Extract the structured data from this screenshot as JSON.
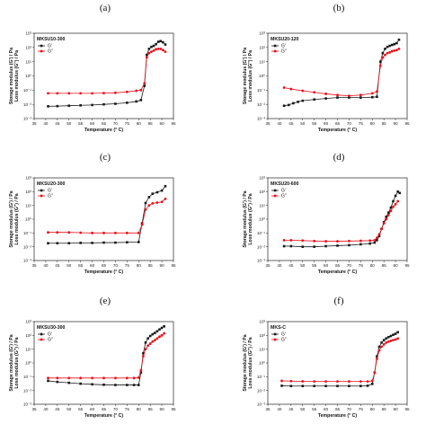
{
  "colors": {
    "g_prime": "#1a1a1a",
    "g_double_prime": "#e8121c",
    "axes": "#222222"
  },
  "legend": {
    "g_prime": "G'",
    "g_double_prime": "G''"
  },
  "axes_text": {
    "xlabel": "Temperature (° C)",
    "ylabel_storage": "Storage modulus (G') / Pa",
    "ylabel_loss": "Loss modulus (G'') / Pa"
  },
  "chart_data": [
    {
      "type": "line",
      "panel": "(a)",
      "sample": "MKSU10-300",
      "xlim": [
        35,
        95
      ],
      "ylog_min_exp": -3,
      "ylog_max_exp": 3,
      "grid": false,
      "legend_position": "top-left",
      "xticks": [
        35,
        40,
        45,
        50,
        55,
        60,
        65,
        70,
        75,
        80,
        85,
        90,
        95
      ],
      "series": [
        {
          "name": "G'",
          "points": [
            [
              41,
              0.0073
            ],
            [
              45,
              0.0075
            ],
            [
              50,
              0.008
            ],
            [
              55,
              0.0085
            ],
            [
              60,
              0.009
            ],
            [
              65,
              0.01
            ],
            [
              70,
              0.011
            ],
            [
              75,
              0.013
            ],
            [
              79,
              0.016
            ],
            [
              81,
              0.02
            ],
            [
              82.5,
              0.2
            ],
            [
              83.5,
              30
            ],
            [
              84.5,
              80
            ],
            [
              85.5,
              110
            ],
            [
              86.5,
              130
            ],
            [
              87.5,
              170
            ],
            [
              88.5,
              250
            ],
            [
              89.5,
              280
            ],
            [
              90.5,
              230
            ],
            [
              91.5,
              160
            ]
          ]
        },
        {
          "name": "G''",
          "points": [
            [
              41,
              0.06
            ],
            [
              45,
              0.06
            ],
            [
              50,
              0.06
            ],
            [
              55,
              0.06
            ],
            [
              60,
              0.06
            ],
            [
              65,
              0.062
            ],
            [
              70,
              0.065
            ],
            [
              75,
              0.075
            ],
            [
              79,
              0.09
            ],
            [
              81,
              0.1
            ],
            [
              82.5,
              0.3
            ],
            [
              83.5,
              20
            ],
            [
              84.5,
              40
            ],
            [
              85.5,
              50
            ],
            [
              86.5,
              60
            ],
            [
              87.5,
              75
            ],
            [
              88.5,
              80
            ],
            [
              89.5,
              80
            ],
            [
              90.5,
              65
            ],
            [
              91.5,
              50
            ]
          ]
        }
      ]
    },
    {
      "type": "line",
      "panel": "(b)",
      "sample": "MKSU20-120",
      "xlim": [
        35,
        95
      ],
      "ylog_min_exp": -3,
      "ylog_max_exp": 3,
      "grid": false,
      "legend_position": "top-left",
      "xticks": [
        35,
        40,
        45,
        50,
        55,
        60,
        65,
        70,
        75,
        80,
        85,
        90,
        95
      ],
      "series": [
        {
          "name": "G'",
          "points": [
            [
              42,
              0.008
            ],
            [
              44,
              0.009
            ],
            [
              46,
              0.012
            ],
            [
              48,
              0.015
            ],
            [
              50,
              0.018
            ],
            [
              55,
              0.022
            ],
            [
              60,
              0.026
            ],
            [
              65,
              0.03
            ],
            [
              70,
              0.03
            ],
            [
              75,
              0.03
            ],
            [
              80,
              0.032
            ],
            [
              82,
              0.034
            ],
            [
              83.5,
              10
            ],
            [
              84.5,
              40
            ],
            [
              85.5,
              80
            ],
            [
              86.5,
              110
            ],
            [
              87.5,
              130
            ],
            [
              88.5,
              150
            ],
            [
              89.5,
              170
            ],
            [
              90.5,
              200
            ],
            [
              91.5,
              350
            ]
          ]
        },
        {
          "name": "G''",
          "points": [
            [
              42,
              0.15
            ],
            [
              45,
              0.12
            ],
            [
              50,
              0.09
            ],
            [
              55,
              0.07
            ],
            [
              60,
              0.055
            ],
            [
              65,
              0.045
            ],
            [
              70,
              0.04
            ],
            [
              75,
              0.045
            ],
            [
              80,
              0.06
            ],
            [
              82,
              0.08
            ],
            [
              83.5,
              5
            ],
            [
              84.5,
              20
            ],
            [
              85.5,
              30
            ],
            [
              86.5,
              40
            ],
            [
              87.5,
              45
            ],
            [
              88.5,
              55
            ],
            [
              89.5,
              60
            ],
            [
              90.5,
              65
            ],
            [
              91.5,
              80
            ]
          ]
        }
      ]
    },
    {
      "type": "line",
      "panel": "(c)",
      "sample": "MKSU20-300",
      "xlim": [
        35,
        95
      ],
      "ylog_min_exp": -3,
      "ylog_max_exp": 3,
      "grid": false,
      "legend_position": "top-left",
      "xticks": [
        35,
        40,
        45,
        50,
        55,
        60,
        65,
        70,
        75,
        80,
        85,
        90,
        95
      ],
      "series": [
        {
          "name": "G'",
          "points": [
            [
              41,
              0.018
            ],
            [
              45,
              0.018
            ],
            [
              50,
              0.018
            ],
            [
              55,
              0.019
            ],
            [
              60,
              0.019
            ],
            [
              65,
              0.02
            ],
            [
              70,
              0.02
            ],
            [
              75,
              0.021
            ],
            [
              80,
              0.022
            ],
            [
              81.5,
              0.5
            ],
            [
              83,
              15
            ],
            [
              84.5,
              40
            ],
            [
              86,
              70
            ],
            [
              88,
              90
            ],
            [
              90,
              120
            ],
            [
              91.5,
              250
            ]
          ]
        },
        {
          "name": "G''",
          "points": [
            [
              41,
              0.11
            ],
            [
              45,
              0.11
            ],
            [
              50,
              0.11
            ],
            [
              55,
              0.105
            ],
            [
              60,
              0.1
            ],
            [
              65,
              0.1
            ],
            [
              70,
              0.1
            ],
            [
              75,
              0.1
            ],
            [
              80,
              0.1
            ],
            [
              81.5,
              0.4
            ],
            [
              83,
              5
            ],
            [
              84.5,
              10
            ],
            [
              86,
              14
            ],
            [
              88,
              16
            ],
            [
              90,
              18
            ],
            [
              91.5,
              30
            ]
          ]
        }
      ]
    },
    {
      "type": "line",
      "panel": "(d)",
      "sample": "MKSU20-600",
      "xlim": [
        35,
        95
      ],
      "ylog_min_exp": -3,
      "ylog_max_exp": 3,
      "grid": false,
      "legend_position": "top-left",
      "xticks": [
        35,
        40,
        45,
        50,
        55,
        60,
        65,
        70,
        75,
        80,
        85,
        90,
        95
      ],
      "series": [
        {
          "name": "G'",
          "points": [
            [
              42,
              0.011
            ],
            [
              45,
              0.011
            ],
            [
              50,
              0.01
            ],
            [
              55,
              0.01
            ],
            [
              60,
              0.011
            ],
            [
              65,
              0.012
            ],
            [
              70,
              0.013
            ],
            [
              75,
              0.015
            ],
            [
              79,
              0.017
            ],
            [
              81,
              0.02
            ],
            [
              82,
              0.03
            ],
            [
              83,
              0.06
            ],
            [
              84,
              0.2
            ],
            [
              85,
              0.6
            ],
            [
              86,
              1.5
            ],
            [
              87,
              3
            ],
            [
              88,
              7
            ],
            [
              89,
              20
            ],
            [
              90,
              50
            ],
            [
              91,
              100
            ],
            [
              91.8,
              80
            ]
          ]
        },
        {
          "name": "G''",
          "points": [
            [
              42,
              0.03
            ],
            [
              45,
              0.03
            ],
            [
              50,
              0.028
            ],
            [
              55,
              0.026
            ],
            [
              60,
              0.025
            ],
            [
              65,
              0.025
            ],
            [
              70,
              0.026
            ],
            [
              75,
              0.027
            ],
            [
              79,
              0.028
            ],
            [
              81,
              0.03
            ],
            [
              82,
              0.045
            ],
            [
              83,
              0.08
            ],
            [
              84,
              0.2
            ],
            [
              85,
              0.5
            ],
            [
              86,
              1
            ],
            [
              87,
              2
            ],
            [
              88,
              4
            ],
            [
              89,
              8
            ],
            [
              90,
              12
            ],
            [
              91,
              20
            ]
          ]
        }
      ]
    },
    {
      "type": "line",
      "panel": "(e)",
      "sample": "MKSU30-300",
      "xlim": [
        35,
        95
      ],
      "ylog_min_exp": -3,
      "ylog_max_exp": 3,
      "grid": false,
      "legend_position": "top-left",
      "xticks": [
        35,
        40,
        45,
        50,
        55,
        60,
        65,
        70,
        75,
        80,
        85,
        90,
        95
      ],
      "series": [
        {
          "name": "G'",
          "points": [
            [
              41,
              0.05
            ],
            [
              45,
              0.042
            ],
            [
              50,
              0.036
            ],
            [
              55,
              0.031
            ],
            [
              60,
              0.028
            ],
            [
              65,
              0.026
            ],
            [
              70,
              0.025
            ],
            [
              75,
              0.025
            ],
            [
              78,
              0.025
            ],
            [
              80,
              0.025
            ],
            [
              81,
              0.2
            ],
            [
              82,
              5
            ],
            [
              83,
              30
            ],
            [
              84,
              60
            ],
            [
              85,
              90
            ],
            [
              86,
              120
            ],
            [
              87,
              150
            ],
            [
              88,
              200
            ],
            [
              89,
              270
            ],
            [
              90,
              350
            ],
            [
              91,
              450
            ]
          ]
        },
        {
          "name": "G''",
          "points": [
            [
              41,
              0.08
            ],
            [
              45,
              0.08
            ],
            [
              50,
              0.08
            ],
            [
              55,
              0.08
            ],
            [
              60,
              0.08
            ],
            [
              65,
              0.08
            ],
            [
              70,
              0.08
            ],
            [
              75,
              0.08
            ],
            [
              78,
              0.08
            ],
            [
              80,
              0.085
            ],
            [
              81,
              0.3
            ],
            [
              82,
              3
            ],
            [
              83,
              10
            ],
            [
              84,
              18
            ],
            [
              85,
              25
            ],
            [
              86,
              35
            ],
            [
              87,
              45
            ],
            [
              88,
              60
            ],
            [
              89,
              80
            ],
            [
              90,
              100
            ],
            [
              91,
              140
            ]
          ]
        }
      ]
    },
    {
      "type": "line",
      "panel": "(f)",
      "sample": "MKS-C",
      "xlim": [
        35,
        95
      ],
      "ylog_min_exp": -3,
      "ylog_max_exp": 3,
      "grid": false,
      "legend_position": "top-left",
      "xticks": [
        35,
        40,
        45,
        50,
        55,
        60,
        65,
        70,
        75,
        80,
        85,
        90,
        95
      ],
      "series": [
        {
          "name": "G'",
          "points": [
            [
              41,
              0.022
            ],
            [
              45,
              0.021
            ],
            [
              50,
              0.021
            ],
            [
              55,
              0.021
            ],
            [
              60,
              0.021
            ],
            [
              65,
              0.021
            ],
            [
              70,
              0.021
            ],
            [
              75,
              0.021
            ],
            [
              78,
              0.022
            ],
            [
              80,
              0.03
            ],
            [
              81,
              0.2
            ],
            [
              82,
              3
            ],
            [
              83,
              15
            ],
            [
              84,
              30
            ],
            [
              85,
              45
            ],
            [
              86,
              60
            ],
            [
              87,
              75
            ],
            [
              88,
              90
            ],
            [
              89,
              110
            ],
            [
              90,
              130
            ],
            [
              91,
              170
            ]
          ]
        },
        {
          "name": "G''",
          "points": [
            [
              41,
              0.05
            ],
            [
              45,
              0.048
            ],
            [
              50,
              0.046
            ],
            [
              55,
              0.045
            ],
            [
              60,
              0.045
            ],
            [
              65,
              0.045
            ],
            [
              70,
              0.045
            ],
            [
              75,
              0.045
            ],
            [
              78,
              0.045
            ],
            [
              80,
              0.05
            ],
            [
              81,
              0.2
            ],
            [
              82,
              2
            ],
            [
              83,
              8
            ],
            [
              84,
              15
            ],
            [
              85,
              22
            ],
            [
              86,
              30
            ],
            [
              87,
              35
            ],
            [
              88,
              40
            ],
            [
              89,
              45
            ],
            [
              90,
              50
            ],
            [
              91,
              60
            ]
          ]
        }
      ]
    }
  ]
}
